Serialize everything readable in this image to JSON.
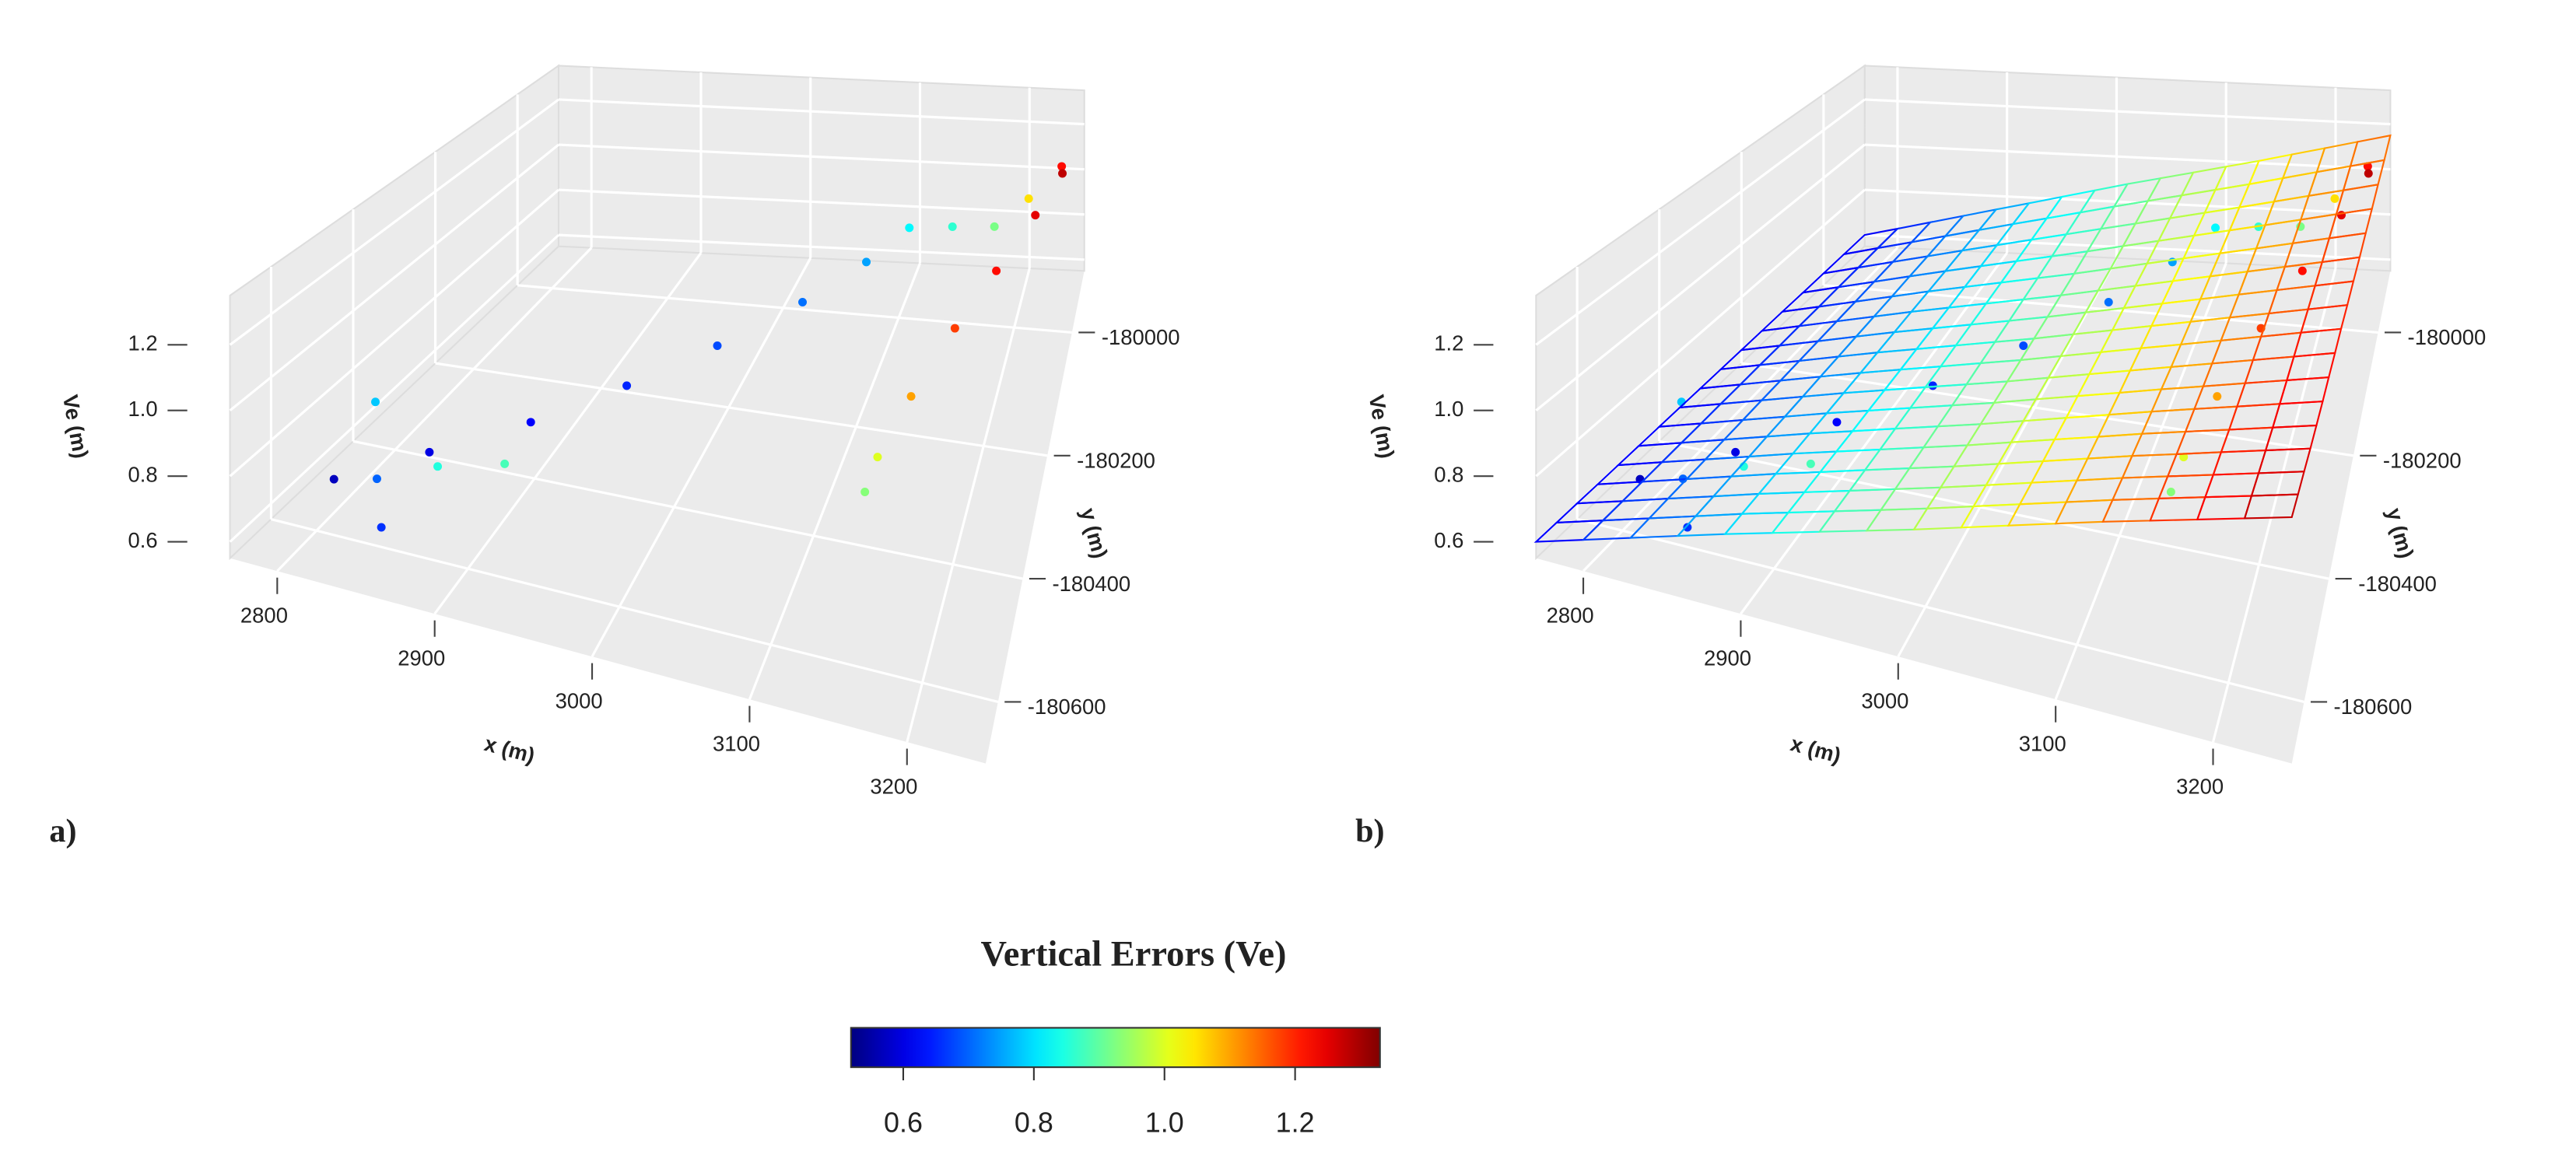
{
  "chart_data": [
    {
      "type": "scatter3d",
      "panel_label": "a)",
      "x_label": "x (m)",
      "y_label": "y (m)",
      "z_label": "Ve (m)",
      "xlim": [
        2770,
        3250
      ],
      "ylim": [
        -180700,
        -179900
      ],
      "zlim": [
        0.55,
        1.35
      ],
      "xticks": [
        2800,
        2900,
        3000,
        3100,
        3200
      ],
      "yticks": [
        -180600,
        -180400,
        -180200,
        -180000
      ],
      "zticks": [
        0.6,
        0.8,
        {
          "value": 1,
          "label": "1.0"
        },
        1.2
      ],
      "x": [
        2785,
        2830,
        2880,
        2930,
        2980,
        3030,
        3070,
        3100,
        3140,
        3180,
        3210,
        3240,
        3245,
        3230,
        3210,
        3190,
        3170,
        3155,
        3150,
        2800,
        2830,
        2850,
        2880,
        2920
      ],
      "y": [
        -180500,
        -180420,
        -180330,
        -180240,
        -180150,
        -180060,
        -179990,
        -179950,
        -179960,
        -179980,
        -179980,
        -179990,
        -180030,
        -180100,
        -180200,
        -180300,
        -180400,
        -180470,
        -180500,
        -180450,
        -180560,
        -180630,
        -180600,
        -180580
      ],
      "z": [
        0.57,
        0.6,
        0.62,
        0.65,
        0.68,
        0.71,
        0.75,
        0.82,
        0.86,
        0.92,
        1.05,
        1.22,
        1.28,
        1.25,
        1.22,
        1.18,
        1.1,
        1.0,
        0.93,
        0.78,
        0.7,
        0.66,
        0.85,
        0.88
      ]
    },
    {
      "type": "surface3d",
      "panel_label": "b)",
      "x_label": "x (m)",
      "y_label": "y (m)",
      "z_label": "Ve (m)",
      "xlim": [
        2770,
        3250
      ],
      "ylim": [
        -180700,
        -179900
      ],
      "zlim": [
        0.55,
        1.35
      ],
      "xticks": [
        2800,
        2900,
        3000,
        3100,
        3200
      ],
      "yticks": [
        -180600,
        -180400,
        -180200,
        -180000
      ],
      "zticks": [
        0.6,
        0.8,
        {
          "value": 1,
          "label": "1.0"
        },
        1.2
      ],
      "grid_x": [
        2770,
        2890,
        3010,
        3130,
        3250
      ],
      "grid_y": [
        -180700,
        -180500,
        -180300,
        -180100,
        -179900
      ],
      "grid_z": [
        [
          0.6,
          0.78,
          0.95,
          1.13,
          1.3
        ],
        [
          0.6,
          0.77,
          0.93,
          1.1,
          1.26
        ],
        [
          0.6,
          0.76,
          0.91,
          1.07,
          1.23
        ],
        [
          0.6,
          0.75,
          0.89,
          1.04,
          1.19
        ],
        [
          0.6,
          0.74,
          0.88,
          1.01,
          1.15
        ]
      ],
      "x": [
        2785,
        2830,
        2880,
        2930,
        2980,
        3030,
        3070,
        3100,
        3140,
        3180,
        3210,
        3240,
        3245,
        3230,
        3210,
        3190,
        3170,
        3155,
        3150,
        2800,
        2830,
        2850,
        2880,
        2920
      ],
      "y": [
        -180500,
        -180420,
        -180330,
        -180240,
        -180150,
        -180060,
        -179990,
        -179950,
        -179960,
        -179980,
        -179980,
        -179990,
        -180030,
        -180100,
        -180200,
        -180300,
        -180400,
        -180470,
        -180500,
        -180450,
        -180560,
        -180630,
        -180600,
        -180580
      ],
      "z": [
        0.57,
        0.6,
        0.62,
        0.65,
        0.68,
        0.71,
        0.75,
        0.82,
        0.86,
        0.92,
        1.05,
        1.22,
        1.28,
        1.25,
        1.22,
        1.18,
        1.1,
        1.0,
        0.93,
        0.78,
        0.7,
        0.66,
        0.85,
        0.88
      ]
    }
  ],
  "colorbar": {
    "title": "Vertical Errors (Ve)",
    "colormap": "jet",
    "lim": [
      0.52,
      1.33
    ],
    "ticks": [
      0.6,
      0.8,
      {
        "value": 1,
        "label": "1.0"
      },
      1.2
    ]
  }
}
